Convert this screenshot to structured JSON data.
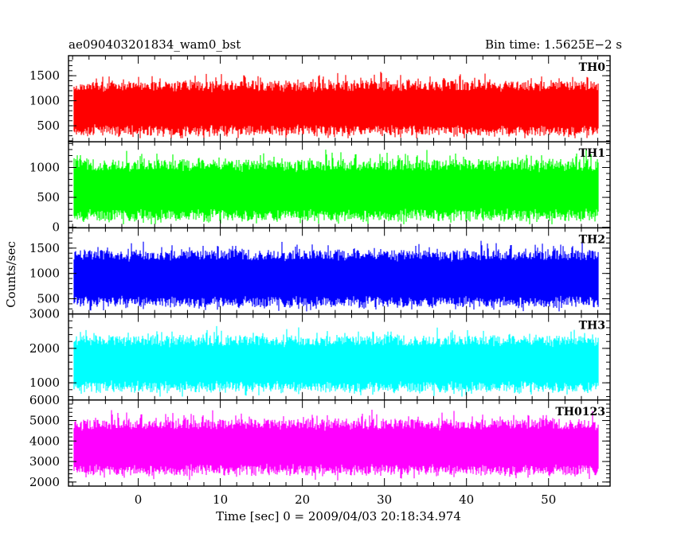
{
  "header": {
    "left_title": "ae090403201834_wam0_bst",
    "right_title": "Bin time: 1.5625E−2 s"
  },
  "chart_data": {
    "type": "line",
    "xlabel": "Time [sec] 0 = 2009/04/03 20:18:34.974",
    "ylabel": "Counts/sec",
    "xlim": [
      -8.5,
      57.5
    ],
    "data_xrange": [
      -7.8,
      56.0
    ],
    "bin_time": 0.015625,
    "x_ticks": [
      0,
      10,
      20,
      30,
      40,
      50
    ],
    "x_tick_labels": [
      "0",
      "10",
      "20",
      "30",
      "40",
      "50"
    ],
    "grid": false,
    "panels": [
      {
        "name": "TH0",
        "color": "#ff0000",
        "ylim": [
          180,
          1900
        ],
        "y_ticks": [
          500,
          1000,
          1500
        ],
        "y_tick_labels": [
          "500",
          "1000",
          "1500"
        ],
        "mean": 850,
        "spread": 320,
        "min": 250,
        "max": 1820
      },
      {
        "name": "TH1",
        "color": "#00ff00",
        "ylim": [
          -10,
          1430
        ],
        "y_ticks": [
          0,
          500,
          1000
        ],
        "y_tick_labels": [
          "0",
          "500",
          "1000"
        ],
        "mean": 620,
        "spread": 300,
        "min": 50,
        "max": 1400
      },
      {
        "name": "TH2",
        "color": "#0000ff",
        "ylim": [
          200,
          1900
        ],
        "y_ticks": [
          500,
          1000,
          1500
        ],
        "y_tick_labels": [
          "500",
          "1000",
          "1500"
        ],
        "mean": 900,
        "spread": 330,
        "min": 250,
        "max": 1880
      },
      {
        "name": "TH3",
        "color": "#00ffff",
        "ylim": [
          500,
          3000
        ],
        "y_ticks": [
          1000,
          2000,
          3000
        ],
        "y_tick_labels": [
          "1000",
          "2000",
          "3000"
        ],
        "mean": 1550,
        "spread": 480,
        "min": 600,
        "max": 2950
      },
      {
        "name": "TH0123",
        "color": "#ff00ff",
        "ylim": [
          1800,
          6000
        ],
        "y_ticks": [
          2000,
          3000,
          4000,
          5000,
          6000
        ],
        "y_tick_labels": [
          "2000",
          "3000",
          "4000",
          "5000",
          "6000"
        ],
        "mean": 3700,
        "spread": 800,
        "min": 1900,
        "max": 5900
      }
    ]
  }
}
